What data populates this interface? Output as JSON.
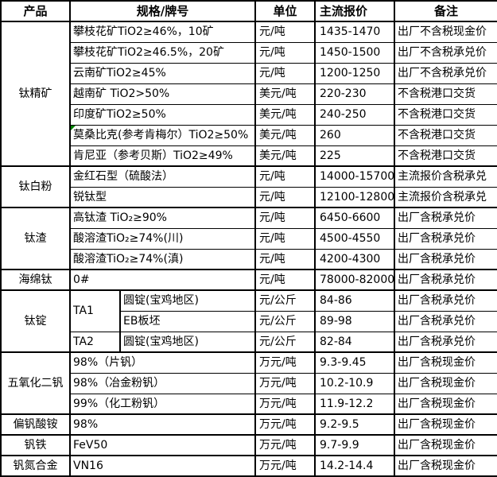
{
  "colors": {
    "border": "#000000",
    "background": "#ffffff",
    "comment_marker_green": "#008000"
  },
  "table": {
    "headers": {
      "product": "产品",
      "spec": "规格/牌号",
      "unit": "单位",
      "price": "主流报价",
      "note": "备注"
    },
    "sections": [
      {
        "product": "钛精矿",
        "rows": [
          {
            "spec": "攀枝花矿TiO2≥46%，10矿",
            "unit": "元/吨",
            "price": "1435-1470",
            "note": "出厂不含税现金价"
          },
          {
            "spec": "攀枝花矿TiO2≥46.5%，20矿",
            "unit": "元/吨",
            "price": "1450-1500",
            "note": "出厂不含税承兑价"
          },
          {
            "spec": "云南矿TiO2≥45%",
            "unit": "元/吨",
            "price": "1200-1250",
            "note": "出厂不含税承兑价"
          },
          {
            "spec": "越南矿 TiO2>50%",
            "unit": "美元/吨",
            "price": "220-230",
            "note": "不含税港口交货"
          },
          {
            "spec": "印度矿TiO2≥50%",
            "unit": "美元/吨",
            "price": "240-250",
            "note": "不含税港口交货"
          },
          {
            "spec": "莫桑比克(参考肯梅尔）TiO2≥50%",
            "unit": "美元/吨",
            "price": "260",
            "note": "不含税港口交货",
            "has_comment_marker": true
          },
          {
            "spec": "肯尼亚（参考贝斯）TiO2≥49%",
            "unit": "美元/吨",
            "price": "225",
            "note": "不含税港口交货"
          }
        ]
      },
      {
        "product": "钛白粉",
        "rows": [
          {
            "spec": "金红石型（硫酸法）",
            "unit": "元/吨",
            "price": "14000-15700",
            "note": "主流报价含税承兑"
          },
          {
            "spec": "锐钛型",
            "unit": "元/吨",
            "price": "12100-12800",
            "note": "主流报价含税承兑"
          }
        ]
      },
      {
        "product": "钛渣",
        "rows": [
          {
            "spec": "高钛渣 TiO₂≥90%",
            "unit": "元/吨",
            "price": "6450-6600",
            "note": "出厂含税承兑价"
          },
          {
            "spec": "酸溶渣TiO₂≥74%(川)",
            "unit": "元/吨",
            "price": "4500-4550",
            "note": "出厂含税承兑价"
          },
          {
            "spec": "酸溶渣TiO₂≥74%(滇)",
            "unit": "元/吨",
            "price": "4200-4300",
            "note": "出厂含税承兑价"
          }
        ]
      },
      {
        "product": "海绵钛",
        "rows": [
          {
            "spec": "0#",
            "unit": "元/吨",
            "price": "78000-82000",
            "note": "出厂含税承兑价"
          }
        ]
      },
      {
        "product": "钛锭",
        "rows": [
          {
            "ta": "TA1",
            "spec": "圆锭(宝鸡地区)",
            "unit": "元/公斤",
            "price": "84-86",
            "note": "出厂含税承兑价"
          },
          {
            "spec": "EB板坯",
            "unit": "元/公斤",
            "price": "89-98",
            "note": "出厂含税承兑价"
          },
          {
            "ta": "TA2",
            "spec": "圆锭(宝鸡地区)",
            "unit": "元/公斤",
            "price": "82-84",
            "note": "出厂含税承兑价"
          }
        ]
      },
      {
        "product": "五氧化二钒",
        "rows": [
          {
            "spec": "98%（片钒）",
            "unit": "万元/吨",
            "price": "9.3-9.45",
            "note": "出厂含税现金价"
          },
          {
            "spec": "98%（冶金粉钒）",
            "unit": "万元/吨",
            "price": "10.2-10.9",
            "note": "出厂含税现金价"
          },
          {
            "spec": "99%（化工粉钒）",
            "unit": "万元/吨",
            "price": "11.9-12.2",
            "note": "出厂含税现金价"
          }
        ]
      },
      {
        "product": "偏钒酸铵",
        "rows": [
          {
            "spec": "98%",
            "unit": "万元/吨",
            "price": "9.2-9.5",
            "note": "出厂含税现金价"
          }
        ]
      },
      {
        "product": "钒铁",
        "rows": [
          {
            "spec": "FeV50",
            "unit": "万元/吨",
            "price": "9.7-9.9",
            "note": "出厂含税现金价"
          }
        ]
      },
      {
        "product": "钒氮合金",
        "rows": [
          {
            "spec": "VN16",
            "unit": "万元/吨",
            "price": "14.2-14.4",
            "note": "出厂含税现金价"
          }
        ]
      }
    ]
  }
}
